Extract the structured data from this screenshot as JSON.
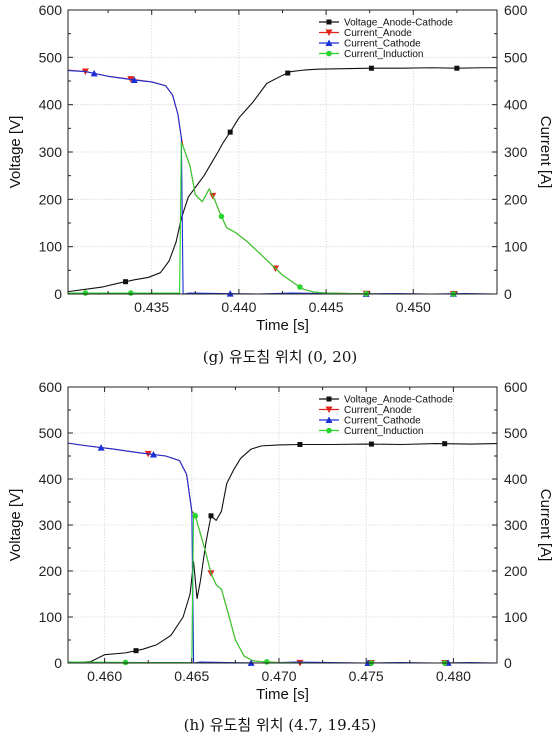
{
  "chart_data": [
    {
      "type": "line",
      "caption": "(g) 유도침 위치 (0, 20)",
      "xlabel": "Time [s]",
      "ylabel_left": "Voltage [V]",
      "ylabel_right": "Current [A]",
      "xlim": [
        0.4302,
        0.4548
      ],
      "ylim_left": [
        0,
        600
      ],
      "ylim_right": [
        0,
        600
      ],
      "xticks": [
        0.435,
        0.44,
        0.445,
        0.45
      ],
      "xtick_labels": [
        "0.435",
        "0.440",
        "0.445",
        "0.450"
      ],
      "yticks": [
        0,
        100,
        200,
        300,
        400,
        500,
        600
      ],
      "grid": true,
      "legend_position": "top-right",
      "series": [
        {
          "name": "Voltage_Anode-Cathode",
          "color": "#111111",
          "marker": "square",
          "x": [
            0.4302,
            0.4312,
            0.4322,
            0.433,
            0.4335,
            0.434,
            0.4348,
            0.4355,
            0.436,
            0.4364,
            0.4367,
            0.4371,
            0.4376,
            0.438,
            0.4384,
            0.4388,
            0.4391,
            0.4395,
            0.44,
            0.4408,
            0.4416,
            0.4425,
            0.443,
            0.4437,
            0.4445,
            0.446,
            0.4476,
            0.4494,
            0.451,
            0.4525,
            0.454,
            0.4548
          ],
          "y": [
            5,
            10,
            15,
            22,
            26,
            30,
            35,
            45,
            70,
            110,
            160,
            205,
            230,
            250,
            275,
            300,
            320,
            342,
            372,
            405,
            445,
            462,
            470,
            473,
            475,
            476,
            477,
            477,
            478,
            477,
            478,
            478
          ],
          "marker_x": [
            0.4335,
            0.4395,
            0.4428,
            0.4476,
            0.4525
          ]
        },
        {
          "name": "Current_Anode",
          "color": "#e2231a",
          "marker": "triangle-down",
          "x": [
            0.4302,
            0.4312,
            0.4325,
            0.434,
            0.435,
            0.4358,
            0.4362,
            0.4365,
            0.4367,
            0.4368,
            0.4372,
            0.4375,
            0.4379,
            0.4383,
            0.4386,
            0.4389,
            0.4393,
            0.4398,
            0.4405,
            0.4415,
            0.4425,
            0.4432,
            0.4437,
            0.4443,
            0.445,
            0.4465,
            0.448,
            0.4495,
            0.451,
            0.4525,
            0.454,
            0.4548
          ],
          "y": [
            473,
            470,
            460,
            453,
            448,
            440,
            420,
            380,
            330,
            312,
            270,
            210,
            195,
            222,
            200,
            172,
            140,
            130,
            110,
            75,
            40,
            22,
            10,
            4,
            2,
            1,
            0,
            0,
            0,
            0,
            0,
            0
          ],
          "marker_x": [
            0.4312,
            0.4338,
            0.4385,
            0.4421,
            0.4473,
            0.4523
          ]
        },
        {
          "name": "Current_Cathode",
          "color": "#1a2fd6",
          "marker": "triangle-up",
          "x": [
            0.4302,
            0.4312,
            0.4325,
            0.434,
            0.435,
            0.4358,
            0.4362,
            0.4365,
            0.4367,
            0.4368,
            0.4372,
            0.439,
            0.441,
            0.443,
            0.445,
            0.447,
            0.449,
            0.451,
            0.453,
            0.4548
          ],
          "y": [
            472,
            470,
            460,
            452,
            448,
            440,
            420,
            380,
            330,
            0,
            2,
            1,
            0,
            2,
            1,
            0,
            1,
            0,
            1,
            0
          ],
          "marker_x": [
            0.4317,
            0.434,
            0.4395,
            0.4473,
            0.4523
          ]
        },
        {
          "name": "Current_Induction",
          "color": "#29d42f",
          "marker": "circle",
          "x": [
            0.4302,
            0.433,
            0.4366,
            0.4367,
            0.4368,
            0.4372,
            0.4375,
            0.4379,
            0.4383,
            0.4386,
            0.4389,
            0.4393,
            0.4398,
            0.4405,
            0.4415,
            0.4425,
            0.4432,
            0.4437,
            0.4443,
            0.445,
            0.4465,
            0.448,
            0.4495,
            0.451,
            0.4525,
            0.454,
            0.4548
          ],
          "y": [
            2,
            2,
            2,
            320,
            312,
            270,
            210,
            195,
            222,
            200,
            172,
            140,
            130,
            110,
            75,
            40,
            22,
            10,
            4,
            2,
            1,
            0,
            0,
            0,
            0,
            0,
            0
          ],
          "marker_x": [
            0.4312,
            0.4338,
            0.439,
            0.4435,
            0.4473,
            0.4523
          ]
        }
      ]
    },
    {
      "type": "line",
      "caption": "(h) 유도침 위치 (4.7, 19.45)",
      "xlabel": "Time [s]",
      "ylabel_left": "Voltage [V]",
      "ylabel_right": "Current [A]",
      "xlim": [
        0.4579,
        0.4825
      ],
      "ylim_left": [
        0,
        600
      ],
      "ylim_right": [
        0,
        600
      ],
      "xticks": [
        0.46,
        0.465,
        0.47,
        0.475,
        0.48
      ],
      "xtick_labels": [
        "0.460",
        "0.465",
        "0.470",
        "0.475",
        "0.480"
      ],
      "yticks": [
        0,
        100,
        200,
        300,
        400,
        500,
        600
      ],
      "grid": true,
      "legend_position": "top-right",
      "series": [
        {
          "name": "Voltage_Anode-Cathode",
          "color": "#111111",
          "marker": "square",
          "x": [
            0.4579,
            0.4592,
            0.46,
            0.4612,
            0.4622,
            0.463,
            0.4638,
            0.4645,
            0.4649,
            0.4651,
            0.4653,
            0.4655,
            0.4658,
            0.4661,
            0.4664,
            0.4667,
            0.467,
            0.4674,
            0.4678,
            0.4684,
            0.469,
            0.47,
            0.4712,
            0.473,
            0.475,
            0.477,
            0.479,
            0.481,
            0.4825
          ],
          "y": [
            0,
            3,
            18,
            22,
            30,
            40,
            60,
            100,
            150,
            220,
            140,
            180,
            260,
            320,
            310,
            330,
            390,
            420,
            445,
            465,
            472,
            474,
            475,
            475,
            476,
            475,
            477,
            476,
            477
          ],
          "marker_x": [
            0.4618,
            0.4661,
            0.4712,
            0.4753,
            0.4795
          ]
        },
        {
          "name": "Current_Anode",
          "color": "#e2231a",
          "marker": "triangle-down",
          "x": [
            0.4579,
            0.459,
            0.4605,
            0.462,
            0.4635,
            0.4643,
            0.4647,
            0.465,
            0.4651,
            0.4652,
            0.4655,
            0.4658,
            0.4661,
            0.4664,
            0.4667,
            0.467,
            0.4675,
            0.468,
            0.4685,
            0.469,
            0.47,
            0.472,
            0.474,
            0.476,
            0.478,
            0.48,
            0.4825
          ],
          "y": [
            478,
            472,
            465,
            457,
            450,
            440,
            410,
            330,
            325,
            320,
            280,
            240,
            195,
            170,
            160,
            120,
            50,
            15,
            5,
            3,
            1,
            0,
            0,
            0,
            0,
            0,
            0
          ],
          "marker_x": [
            0.4625,
            0.4661,
            0.4712,
            0.4753,
            0.4795
          ]
        },
        {
          "name": "Current_Cathode",
          "color": "#1a2fd6",
          "marker": "triangle-up",
          "x": [
            0.4579,
            0.459,
            0.4605,
            0.462,
            0.4635,
            0.4643,
            0.4647,
            0.465,
            0.4651,
            0.4655,
            0.467,
            0.469,
            0.471,
            0.473,
            0.475,
            0.477,
            0.479,
            0.481,
            0.4825
          ],
          "y": [
            478,
            472,
            465,
            457,
            450,
            440,
            410,
            330,
            0,
            2,
            1,
            0,
            2,
            1,
            0,
            1,
            0,
            1,
            0
          ],
          "marker_x": [
            0.4598,
            0.4628,
            0.4684,
            0.4751,
            0.4797
          ]
        },
        {
          "name": "Current_Induction",
          "color": "#29d42f",
          "marker": "circle",
          "x": [
            0.4579,
            0.462,
            0.465,
            0.4651,
            0.4652,
            0.4655,
            0.4658,
            0.4661,
            0.4664,
            0.4667,
            0.467,
            0.4675,
            0.468,
            0.4685,
            0.469,
            0.47,
            0.472,
            0.474,
            0.476,
            0.478,
            0.48,
            0.4825
          ],
          "y": [
            2,
            1,
            1,
            328,
            320,
            280,
            240,
            195,
            170,
            160,
            120,
            50,
            15,
            5,
            3,
            1,
            0,
            0,
            0,
            0,
            0,
            0
          ],
          "marker_x": [
            0.4612,
            0.4652,
            0.4693,
            0.4753,
            0.4795
          ]
        }
      ]
    }
  ]
}
